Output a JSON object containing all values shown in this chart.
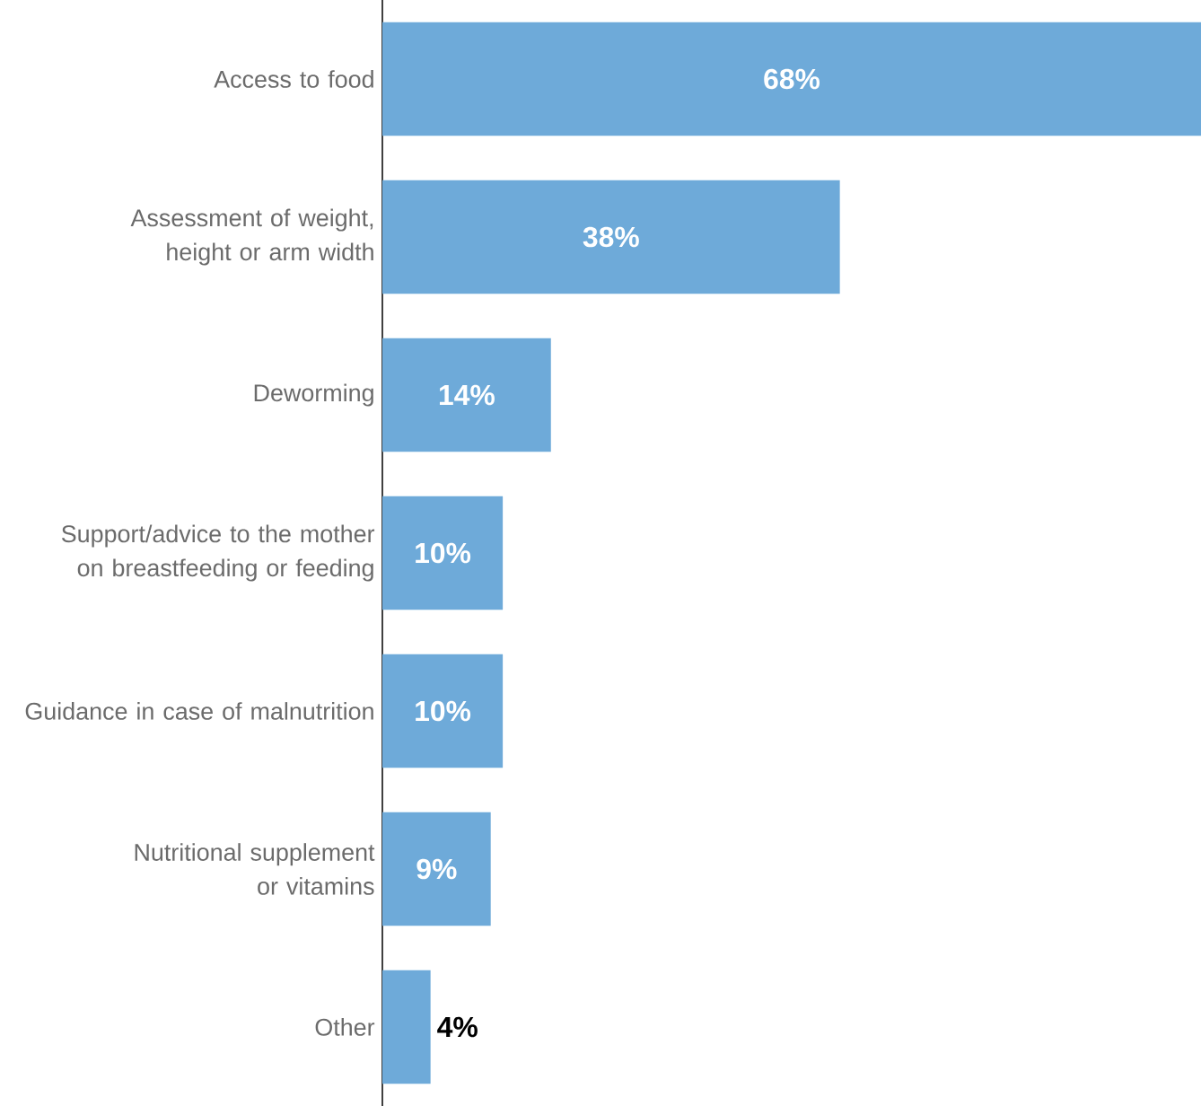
{
  "chart_data": {
    "type": "bar",
    "orientation": "horizontal",
    "categories": [
      "Access to food",
      "Assessment of weight, height or arm width",
      "Deworming",
      "Support/advice to the mother on breastfeeding or feeding",
      "Guidance in case of malnutrition",
      "Nutritional supplement or vitamins",
      "Other"
    ],
    "values": [
      68,
      38,
      14,
      10,
      10,
      9,
      4
    ],
    "value_labels": [
      "68%",
      "38%",
      "14%",
      "10%",
      "10%",
      "9%",
      "4%"
    ],
    "color": "#6eaad9",
    "xlim": [
      0,
      68
    ],
    "tick_labels": "y"
  }
}
